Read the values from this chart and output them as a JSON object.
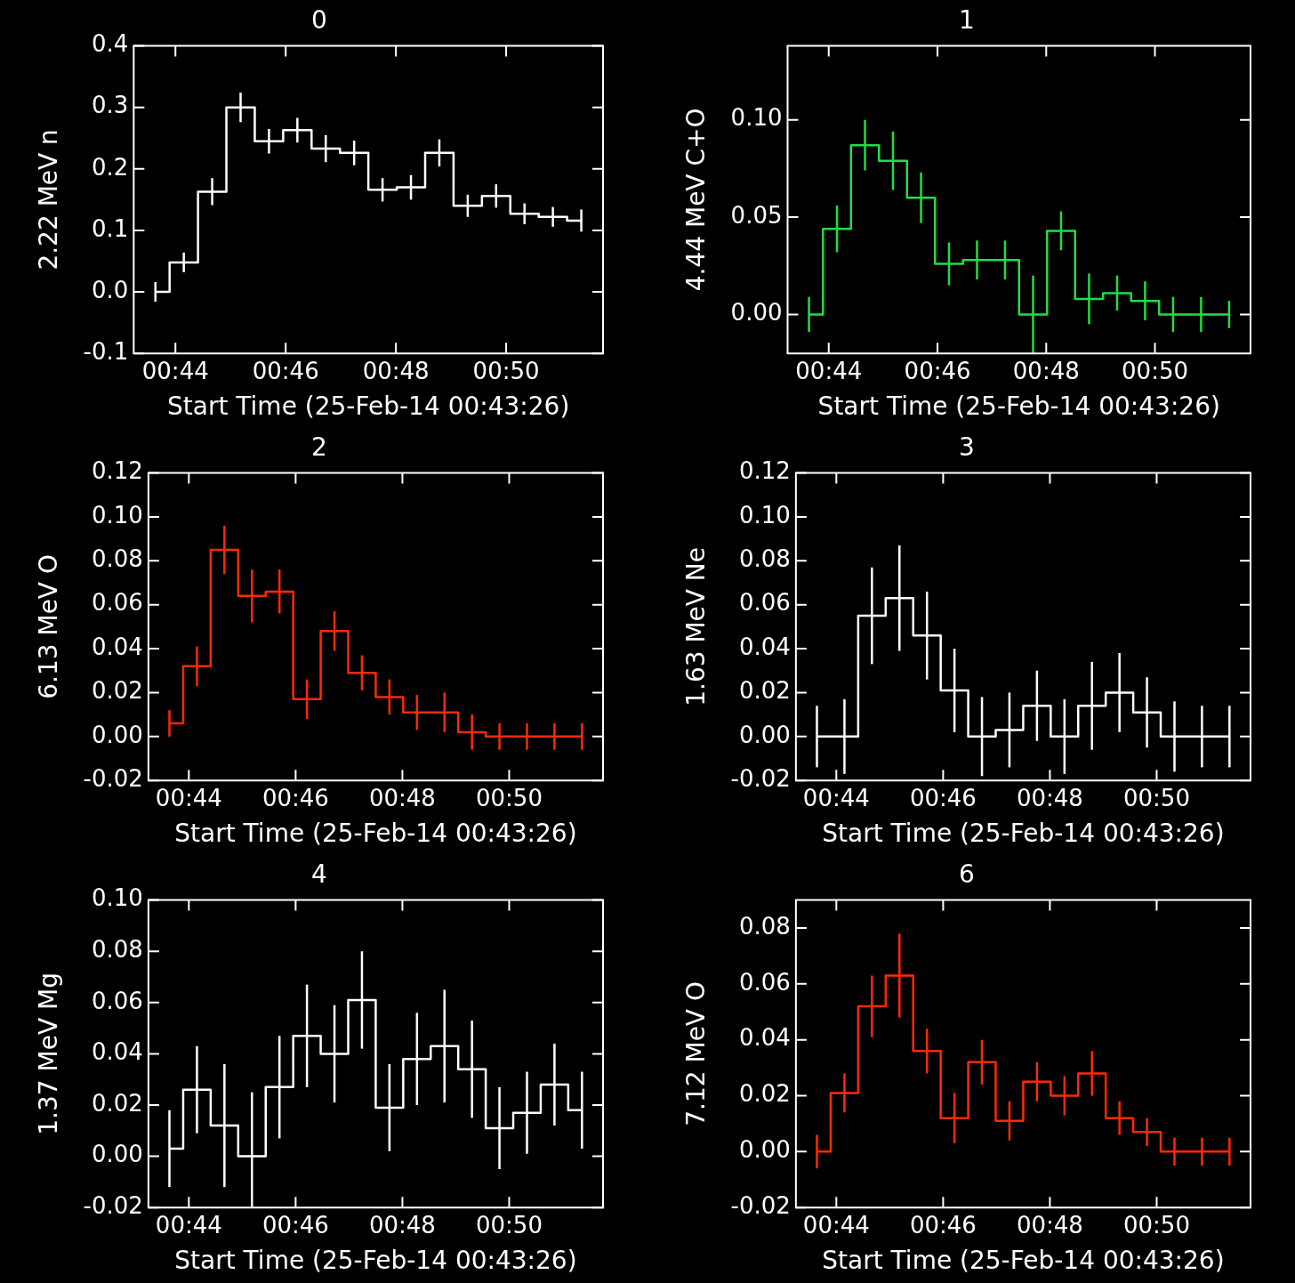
{
  "chart_data": [
    {
      "type": "step",
      "title": "0",
      "xlabel": "Start Time (25-Feb-14 00:43:26)",
      "ylabel": "2.22 MeV n",
      "x": [
        0.72727,
        0.73586,
        0.74444,
        0.75303,
        0.76162,
        0.7702,
        0.77879,
        0.78737,
        0.79596,
        0.80455,
        0.81313,
        0.82172,
        0.8303,
        0.83889,
        0.84747,
        0.85606
      ],
      "xlim": [
        0.72071,
        0.86263
      ],
      "xticks": [
        {
          "value": 0.73333,
          "label": "00:44"
        },
        {
          "value": 0.76667,
          "label": "00:46"
        },
        {
          "value": 0.8,
          "label": "00:48"
        },
        {
          "value": 0.83333,
          "label": "00:50"
        }
      ],
      "ylim": [
        -0.1,
        0.4
      ],
      "yticks": [
        {
          "value": -0.1,
          "label": "-0.1"
        },
        {
          "value": 0,
          "label": "0.0"
        },
        {
          "value": 0.1,
          "label": "0.1"
        },
        {
          "value": 0.2,
          "label": "0.2"
        },
        {
          "value": 0.3,
          "label": "0.3"
        },
        {
          "value": 0.4,
          "label": "0.4"
        }
      ],
      "series": [
        {
          "color": "#ffffff",
          "values": [
            0.0,
            0.048,
            0.163,
            0.3,
            0.245,
            0.263,
            0.233,
            0.226,
            0.166,
            0.17,
            0.226,
            0.14,
            0.156,
            0.127,
            0.122,
            0.116
          ],
          "errors": [
            0.016,
            0.016,
            0.022,
            0.024,
            0.02,
            0.02,
            0.022,
            0.02,
            0.019,
            0.02,
            0.022,
            0.018,
            0.019,
            0.017,
            0.016,
            0.018
          ]
        }
      ]
    },
    {
      "type": "step",
      "title": "1",
      "xlabel": "Start Time (25-Feb-14 00:43:26)",
      "ylabel": "4.44 MeV C+O",
      "x": [
        0.72727,
        0.73586,
        0.74444,
        0.75303,
        0.76162,
        0.7702,
        0.77879,
        0.78737,
        0.79596,
        0.80455,
        0.81313,
        0.82172,
        0.8303,
        0.83889,
        0.84747,
        0.85606
      ],
      "xlim": [
        0.72071,
        0.86263
      ],
      "xticks": [
        {
          "value": 0.73333,
          "label": "00:44"
        },
        {
          "value": 0.76667,
          "label": "00:46"
        },
        {
          "value": 0.8,
          "label": "00:48"
        },
        {
          "value": 0.83333,
          "label": "00:50"
        }
      ],
      "ylim": [
        -0.02,
        0.138
      ],
      "yticks": [
        {
          "value": 0,
          "label": "0.00"
        },
        {
          "value": 0.05,
          "label": "0.05"
        },
        {
          "value": 0.1,
          "label": "0.10"
        }
      ],
      "series": [
        {
          "color": "#22dd44",
          "values": [
            0.0,
            0.044,
            0.087,
            0.079,
            0.06,
            0.026,
            0.028,
            0.028,
            0.0,
            0.043,
            0.008,
            0.011,
            0.007,
            0.0,
            0.0,
            0.0
          ],
          "errors": [
            0.009,
            0.012,
            0.013,
            0.015,
            0.013,
            0.011,
            0.01,
            0.01,
            0.02,
            0.01,
            0.013,
            0.009,
            0.01,
            0.009,
            0.009,
            0.007
          ]
        }
      ]
    },
    {
      "type": "step",
      "title": "2",
      "xlabel": "Start Time (25-Feb-14 00:43:26)",
      "ylabel": "6.13 MeV O",
      "x": [
        0.72727,
        0.73586,
        0.74444,
        0.75303,
        0.76162,
        0.7702,
        0.77879,
        0.78737,
        0.79596,
        0.80455,
        0.81313,
        0.82172,
        0.8303,
        0.83889,
        0.84747,
        0.85606
      ],
      "xlim": [
        0.72071,
        0.86263
      ],
      "xticks": [
        {
          "value": 0.73333,
          "label": "00:44"
        },
        {
          "value": 0.76667,
          "label": "00:46"
        },
        {
          "value": 0.8,
          "label": "00:48"
        },
        {
          "value": 0.83333,
          "label": "00:50"
        }
      ],
      "ylim": [
        -0.02,
        0.12
      ],
      "yticks": [
        {
          "value": -0.02,
          "label": "-0.02"
        },
        {
          "value": 0,
          "label": "0.00"
        },
        {
          "value": 0.02,
          "label": "0.02"
        },
        {
          "value": 0.04,
          "label": "0.04"
        },
        {
          "value": 0.06,
          "label": "0.06"
        },
        {
          "value": 0.08,
          "label": "0.08"
        },
        {
          "value": 0.1,
          "label": "0.10"
        },
        {
          "value": 0.12,
          "label": "0.12"
        }
      ],
      "series": [
        {
          "color": "#ff2a00",
          "values": [
            0.006,
            0.032,
            0.085,
            0.064,
            0.066,
            0.017,
            0.048,
            0.029,
            0.018,
            0.011,
            0.011,
            0.002,
            0.0,
            0.0,
            0.0,
            0.0
          ],
          "errors": [
            0.006,
            0.009,
            0.011,
            0.012,
            0.01,
            0.009,
            0.009,
            0.008,
            0.008,
            0.008,
            0.009,
            0.008,
            0.006,
            0.006,
            0.006,
            0.006
          ]
        }
      ]
    },
    {
      "type": "step",
      "title": "3",
      "xlabel": "Start Time (25-Feb-14 00:43:26)",
      "ylabel": "1.63 MeV Ne",
      "x": [
        0.72727,
        0.73586,
        0.74444,
        0.75303,
        0.76162,
        0.7702,
        0.77879,
        0.78737,
        0.79596,
        0.80455,
        0.81313,
        0.82172,
        0.8303,
        0.83889,
        0.84747,
        0.85606
      ],
      "xlim": [
        0.72071,
        0.86263
      ],
      "xticks": [
        {
          "value": 0.73333,
          "label": "00:44"
        },
        {
          "value": 0.76667,
          "label": "00:46"
        },
        {
          "value": 0.8,
          "label": "00:48"
        },
        {
          "value": 0.83333,
          "label": "00:50"
        }
      ],
      "ylim": [
        -0.02,
        0.12
      ],
      "yticks": [
        {
          "value": -0.02,
          "label": "-0.02"
        },
        {
          "value": 0,
          "label": "0.00"
        },
        {
          "value": 0.02,
          "label": "0.02"
        },
        {
          "value": 0.04,
          "label": "0.04"
        },
        {
          "value": 0.06,
          "label": "0.06"
        },
        {
          "value": 0.08,
          "label": "0.08"
        },
        {
          "value": 0.1,
          "label": "0.10"
        },
        {
          "value": 0.12,
          "label": "0.12"
        }
      ],
      "series": [
        {
          "color": "#ffffff",
          "values": [
            0.0,
            0.0,
            0.055,
            0.063,
            0.046,
            0.021,
            0.0,
            0.003,
            0.014,
            0.0,
            0.014,
            0.02,
            0.011,
            0.0,
            0.0,
            0.0
          ],
          "errors": [
            0.014,
            0.017,
            0.022,
            0.024,
            0.02,
            0.019,
            0.018,
            0.017,
            0.016,
            0.017,
            0.02,
            0.018,
            0.016,
            0.016,
            0.014,
            0.014
          ]
        }
      ]
    },
    {
      "type": "step",
      "title": "4",
      "xlabel": "Start Time (25-Feb-14 00:43:26)",
      "ylabel": "1.37 MeV Mg",
      "x": [
        0.72727,
        0.73586,
        0.74444,
        0.75303,
        0.76162,
        0.7702,
        0.77879,
        0.78737,
        0.79596,
        0.80455,
        0.81313,
        0.82172,
        0.8303,
        0.83889,
        0.84747,
        0.85606
      ],
      "xlim": [
        0.72071,
        0.86263
      ],
      "xticks": [
        {
          "value": 0.73333,
          "label": "00:44"
        },
        {
          "value": 0.76667,
          "label": "00:46"
        },
        {
          "value": 0.8,
          "label": "00:48"
        },
        {
          "value": 0.83333,
          "label": "00:50"
        }
      ],
      "ylim": [
        -0.02,
        0.1
      ],
      "yticks": [
        {
          "value": -0.02,
          "label": "-0.02"
        },
        {
          "value": 0,
          "label": "0.00"
        },
        {
          "value": 0.02,
          "label": "0.02"
        },
        {
          "value": 0.04,
          "label": "0.04"
        },
        {
          "value": 0.06,
          "label": "0.06"
        },
        {
          "value": 0.08,
          "label": "0.08"
        },
        {
          "value": 0.1,
          "label": "0.10"
        }
      ],
      "series": [
        {
          "color": "#ffffff",
          "values": [
            0.003,
            0.026,
            0.012,
            0.0,
            0.027,
            0.047,
            0.04,
            0.061,
            0.019,
            0.038,
            0.043,
            0.034,
            0.011,
            0.017,
            0.028,
            0.018
          ],
          "errors": [
            0.015,
            0.017,
            0.024,
            [
              -0.02,
              0.025
            ],
            0.02,
            0.02,
            0.019,
            0.019,
            0.017,
            0.018,
            0.022,
            0.019,
            0.016,
            0.016,
            0.016,
            0.015
          ]
        }
      ]
    },
    {
      "type": "step",
      "title": "6",
      "xlabel": "Start Time (25-Feb-14 00:43:26)",
      "ylabel": "7.12 MeV O",
      "x": [
        0.72727,
        0.73586,
        0.74444,
        0.75303,
        0.76162,
        0.7702,
        0.77879,
        0.78737,
        0.79596,
        0.80455,
        0.81313,
        0.82172,
        0.8303,
        0.83889,
        0.84747,
        0.85606
      ],
      "xlim": [
        0.72071,
        0.86263
      ],
      "xticks": [
        {
          "value": 0.73333,
          "label": "00:44"
        },
        {
          "value": 0.76667,
          "label": "00:46"
        },
        {
          "value": 0.8,
          "label": "00:48"
        },
        {
          "value": 0.83333,
          "label": "00:50"
        }
      ],
      "ylim": [
        -0.02,
        0.09
      ],
      "yticks": [
        {
          "value": -0.02,
          "label": "-0.02"
        },
        {
          "value": 0,
          "label": "0.00"
        },
        {
          "value": 0.02,
          "label": "0.02"
        },
        {
          "value": 0.04,
          "label": "0.04"
        },
        {
          "value": 0.06,
          "label": "0.06"
        },
        {
          "value": 0.08,
          "label": "0.08"
        }
      ],
      "series": [
        {
          "color": "#ff2a00",
          "values": [
            0.0,
            0.021,
            0.052,
            0.063,
            0.036,
            0.012,
            0.032,
            0.011,
            0.025,
            0.02,
            0.028,
            0.012,
            0.007,
            0.0,
            0.0,
            0.0
          ],
          "errors": [
            0.006,
            0.007,
            0.011,
            0.015,
            0.008,
            0.009,
            0.008,
            0.007,
            0.007,
            0.007,
            0.008,
            0.006,
            0.005,
            0.005,
            0.005,
            0.005
          ]
        }
      ]
    }
  ]
}
